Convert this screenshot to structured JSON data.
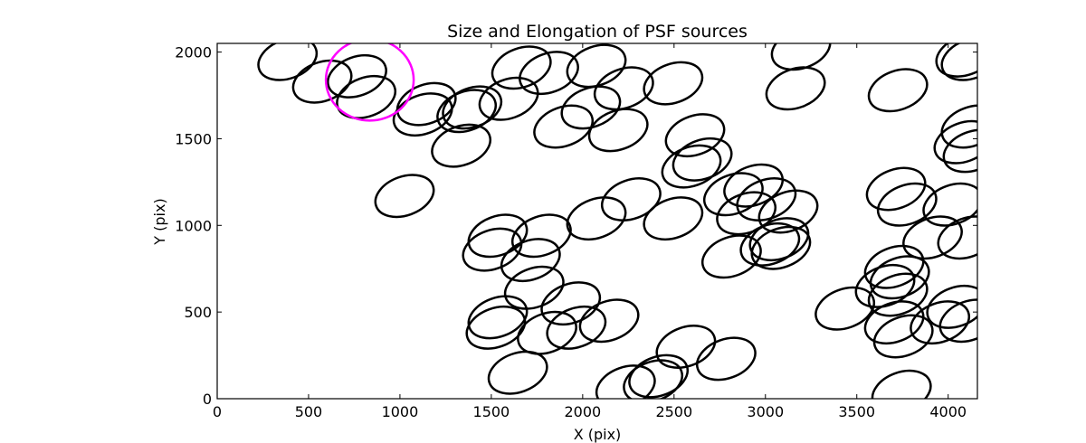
{
  "chart_data": {
    "type": "scatter",
    "title": "Size and Elongation of PSF sources",
    "xlabel": "X (pix)",
    "ylabel": "Y (pix)",
    "xlim": [
      0,
      4160
    ],
    "ylim": [
      0,
      2050
    ],
    "xticks": [
      0,
      500,
      1000,
      1500,
      2000,
      2500,
      3000,
      3500,
      4000
    ],
    "yticks": [
      0,
      500,
      1000,
      1500,
      2000
    ],
    "tick_labels_x": [
      "0",
      "500",
      "1000",
      "1500",
      "2000",
      "2500",
      "3000",
      "3500",
      "4000"
    ],
    "tick_labels_y": [
      "0",
      "500",
      "1000",
      "1500",
      "2000"
    ],
    "grid": false,
    "default_color": "#000000",
    "highlight_color": "#ff00ff",
    "sources": [
      {
        "x": 385,
        "y": 1960,
        "rx": 165,
        "ry": 112,
        "angle": 20
      },
      {
        "x": 575,
        "y": 1830,
        "rx": 165,
        "ry": 112,
        "angle": 20
      },
      {
        "x": 765,
        "y": 1860,
        "rx": 165,
        "ry": 112,
        "angle": 20
      },
      {
        "x": 815,
        "y": 1740,
        "rx": 165,
        "ry": 112,
        "angle": 20
      },
      {
        "x": 835,
        "y": 1840,
        "rx": 240,
        "ry": 235,
        "angle": 0,
        "highlight": true
      },
      {
        "x": 1145,
        "y": 1700,
        "rx": 165,
        "ry": 112,
        "angle": 20
      },
      {
        "x": 1125,
        "y": 1640,
        "rx": 165,
        "ry": 112,
        "angle": 20
      },
      {
        "x": 1365,
        "y": 1660,
        "rx": 165,
        "ry": 112,
        "angle": 20
      },
      {
        "x": 1395,
        "y": 1680,
        "rx": 165,
        "ry": 112,
        "angle": 20
      },
      {
        "x": 1335,
        "y": 1460,
        "rx": 165,
        "ry": 112,
        "angle": 20
      },
      {
        "x": 1595,
        "y": 1730,
        "rx": 165,
        "ry": 112,
        "angle": 20
      },
      {
        "x": 1665,
        "y": 1910,
        "rx": 165,
        "ry": 112,
        "angle": 20
      },
      {
        "x": 1815,
        "y": 1880,
        "rx": 165,
        "ry": 112,
        "angle": 20
      },
      {
        "x": 1895,
        "y": 1570,
        "rx": 165,
        "ry": 112,
        "angle": 20
      },
      {
        "x": 2045,
        "y": 1680,
        "rx": 165,
        "ry": 112,
        "angle": 20
      },
      {
        "x": 2075,
        "y": 1920,
        "rx": 165,
        "ry": 112,
        "angle": 20
      },
      {
        "x": 2225,
        "y": 1790,
        "rx": 165,
        "ry": 112,
        "angle": 20
      },
      {
        "x": 2195,
        "y": 1550,
        "rx": 165,
        "ry": 112,
        "angle": 20
      },
      {
        "x": 2495,
        "y": 1820,
        "rx": 165,
        "ry": 112,
        "angle": 20
      },
      {
        "x": 2615,
        "y": 1520,
        "rx": 165,
        "ry": 112,
        "angle": 20
      },
      {
        "x": 2595,
        "y": 1340,
        "rx": 165,
        "ry": 112,
        "angle": 20
      },
      {
        "x": 2655,
        "y": 1380,
        "rx": 165,
        "ry": 112,
        "angle": 20
      },
      {
        "x": 1025,
        "y": 1170,
        "rx": 165,
        "ry": 112,
        "angle": 20
      },
      {
        "x": 2265,
        "y": 1150,
        "rx": 165,
        "ry": 112,
        "angle": 20
      },
      {
        "x": 2075,
        "y": 1040,
        "rx": 165,
        "ry": 112,
        "angle": 20
      },
      {
        "x": 2495,
        "y": 1040,
        "rx": 165,
        "ry": 112,
        "angle": 20
      },
      {
        "x": 2825,
        "y": 1180,
        "rx": 165,
        "ry": 112,
        "angle": 20
      },
      {
        "x": 2935,
        "y": 1230,
        "rx": 165,
        "ry": 112,
        "angle": 20
      },
      {
        "x": 3005,
        "y": 1150,
        "rx": 165,
        "ry": 112,
        "angle": 20
      },
      {
        "x": 2895,
        "y": 1070,
        "rx": 165,
        "ry": 112,
        "angle": 20
      },
      {
        "x": 3125,
        "y": 1080,
        "rx": 165,
        "ry": 112,
        "angle": 20
      },
      {
        "x": 3025,
        "y": 890,
        "rx": 165,
        "ry": 112,
        "angle": 20
      },
      {
        "x": 3085,
        "y": 870,
        "rx": 165,
        "ry": 112,
        "angle": 20
      },
      {
        "x": 3075,
        "y": 920,
        "rx": 165,
        "ry": 112,
        "angle": 20
      },
      {
        "x": 2815,
        "y": 820,
        "rx": 165,
        "ry": 112,
        "angle": 20
      },
      {
        "x": 1535,
        "y": 940,
        "rx": 165,
        "ry": 112,
        "angle": 20
      },
      {
        "x": 1505,
        "y": 860,
        "rx": 165,
        "ry": 112,
        "angle": 20
      },
      {
        "x": 1775,
        "y": 940,
        "rx": 165,
        "ry": 112,
        "angle": 20
      },
      {
        "x": 1715,
        "y": 800,
        "rx": 165,
        "ry": 112,
        "angle": 20
      },
      {
        "x": 1735,
        "y": 640,
        "rx": 165,
        "ry": 112,
        "angle": 20
      },
      {
        "x": 1935,
        "y": 550,
        "rx": 165,
        "ry": 112,
        "angle": 20
      },
      {
        "x": 1535,
        "y": 470,
        "rx": 165,
        "ry": 112,
        "angle": 20
      },
      {
        "x": 1525,
        "y": 410,
        "rx": 165,
        "ry": 112,
        "angle": 20
      },
      {
        "x": 1805,
        "y": 380,
        "rx": 165,
        "ry": 112,
        "angle": 20
      },
      {
        "x": 1965,
        "y": 410,
        "rx": 165,
        "ry": 112,
        "angle": 20
      },
      {
        "x": 2145,
        "y": 450,
        "rx": 165,
        "ry": 112,
        "angle": 20
      },
      {
        "x": 1645,
        "y": 150,
        "rx": 165,
        "ry": 112,
        "angle": 20
      },
      {
        "x": 2235,
        "y": 70,
        "rx": 165,
        "ry": 112,
        "angle": 20
      },
      {
        "x": 2385,
        "y": 100,
        "rx": 165,
        "ry": 112,
        "angle": 20
      },
      {
        "x": 2415,
        "y": 130,
        "rx": 165,
        "ry": 112,
        "angle": 20
      },
      {
        "x": 2565,
        "y": 300,
        "rx": 165,
        "ry": 112,
        "angle": 20
      },
      {
        "x": 2785,
        "y": 230,
        "rx": 165,
        "ry": 112,
        "angle": 20
      },
      {
        "x": 3195,
        "y": 2020,
        "rx": 165,
        "ry": 112,
        "angle": 20
      },
      {
        "x": 3165,
        "y": 1790,
        "rx": 165,
        "ry": 112,
        "angle": 20
      },
      {
        "x": 3725,
        "y": 1780,
        "rx": 165,
        "ry": 112,
        "angle": 20
      },
      {
        "x": 4095,
        "y": 1980,
        "rx": 165,
        "ry": 112,
        "angle": 20
      },
      {
        "x": 4125,
        "y": 1960,
        "rx": 165,
        "ry": 112,
        "angle": 20
      },
      {
        "x": 4125,
        "y": 1570,
        "rx": 165,
        "ry": 112,
        "angle": 20
      },
      {
        "x": 4085,
        "y": 1480,
        "rx": 165,
        "ry": 112,
        "angle": 20
      },
      {
        "x": 4135,
        "y": 1430,
        "rx": 165,
        "ry": 112,
        "angle": 20
      },
      {
        "x": 3715,
        "y": 1210,
        "rx": 165,
        "ry": 112,
        "angle": 20
      },
      {
        "x": 3775,
        "y": 1120,
        "rx": 165,
        "ry": 112,
        "angle": 20
      },
      {
        "x": 4025,
        "y": 1120,
        "rx": 165,
        "ry": 112,
        "angle": 20
      },
      {
        "x": 3915,
        "y": 930,
        "rx": 165,
        "ry": 112,
        "angle": 20
      },
      {
        "x": 4105,
        "y": 930,
        "rx": 165,
        "ry": 112,
        "angle": 20
      },
      {
        "x": 3705,
        "y": 760,
        "rx": 165,
        "ry": 112,
        "angle": 20
      },
      {
        "x": 3735,
        "y": 700,
        "rx": 165,
        "ry": 112,
        "angle": 20
      },
      {
        "x": 3655,
        "y": 650,
        "rx": 165,
        "ry": 112,
        "angle": 20
      },
      {
        "x": 3725,
        "y": 600,
        "rx": 165,
        "ry": 112,
        "angle": 20
      },
      {
        "x": 3435,
        "y": 520,
        "rx": 165,
        "ry": 112,
        "angle": 20
      },
      {
        "x": 3705,
        "y": 440,
        "rx": 165,
        "ry": 112,
        "angle": 20
      },
      {
        "x": 3755,
        "y": 360,
        "rx": 165,
        "ry": 112,
        "angle": 20
      },
      {
        "x": 3955,
        "y": 440,
        "rx": 165,
        "ry": 112,
        "angle": 20
      },
      {
        "x": 4045,
        "y": 530,
        "rx": 165,
        "ry": 112,
        "angle": 20
      },
      {
        "x": 4115,
        "y": 450,
        "rx": 165,
        "ry": 112,
        "angle": 20
      },
      {
        "x": 3745,
        "y": 40,
        "rx": 165,
        "ry": 112,
        "angle": 20
      }
    ]
  }
}
